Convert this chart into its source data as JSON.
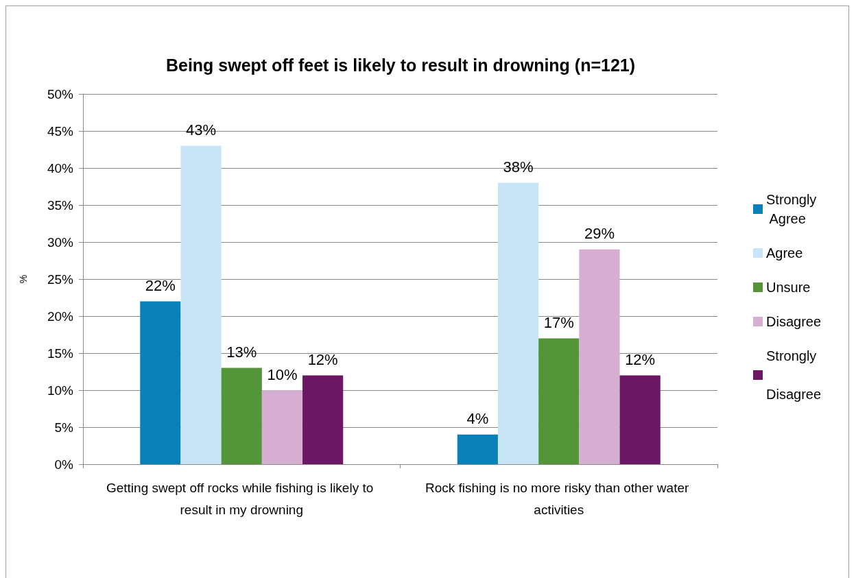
{
  "chart_data": {
    "type": "bar",
    "title": "Being swept off feet is likely to result in drowning (n=121)",
    "ylabel": "%",
    "categories": [
      "Getting swept off rocks while fishing is likely to result in my drowning",
      "Rock fishing is no more risky than other water activities"
    ],
    "series": [
      {
        "name": "Strongly Agree",
        "color": "#0a80b9",
        "values": [
          22,
          4
        ],
        "value_labels": [
          "22%",
          "4%"
        ]
      },
      {
        "name": "Agree",
        "color": "#c7e5f7",
        "values": [
          43,
          38
        ],
        "value_labels": [
          "43%",
          "38%"
        ]
      },
      {
        "name": "Unsure",
        "color": "#54953a",
        "values": [
          13,
          17
        ],
        "value_labels": [
          "13%",
          "17%"
        ]
      },
      {
        "name": "Disagree",
        "color": "#d6aed2",
        "values": [
          10,
          29
        ],
        "value_labels": [
          "10%",
          "29%"
        ]
      },
      {
        "name": "Strongly Disagree",
        "color": "#6c1763",
        "values": [
          12,
          12
        ],
        "value_labels": [
          "12%",
          "12%"
        ]
      }
    ],
    "ylim": [
      0,
      50
    ],
    "yticks": [
      {
        "value": 0,
        "label": "0%"
      },
      {
        "value": 5,
        "label": "5%"
      },
      {
        "value": 10,
        "label": "10%"
      },
      {
        "value": 15,
        "label": "15%"
      },
      {
        "value": 20,
        "label": "20%"
      },
      {
        "value": 25,
        "label": "25%"
      },
      {
        "value": 30,
        "label": "30%"
      },
      {
        "value": 35,
        "label": "35%"
      },
      {
        "value": 40,
        "label": "40%"
      },
      {
        "value": 45,
        "label": "45%"
      },
      {
        "value": 50,
        "label": "50%"
      }
    ],
    "grid": "y",
    "legend": "right"
  }
}
